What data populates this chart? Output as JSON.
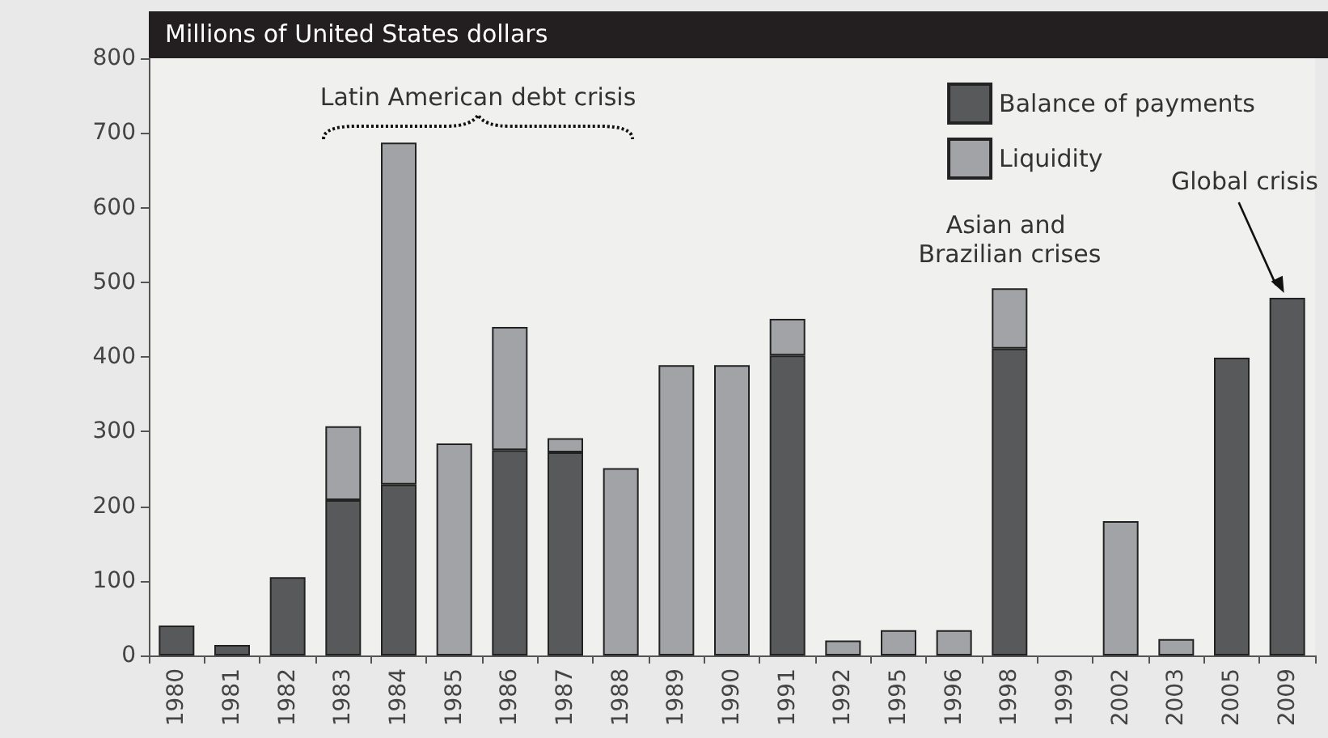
{
  "chart_data": {
    "type": "bar",
    "stacked": true,
    "ylabel": "Millions of United States dollars",
    "categories": [
      "1980",
      "1981",
      "1982",
      "1983",
      "1984",
      "1985",
      "1986",
      "1987",
      "1988",
      "1989",
      "1990",
      "1991",
      "1992",
      "1995",
      "1996",
      "1998",
      "1999",
      "2002",
      "2003",
      "2005",
      "2009"
    ],
    "series": [
      {
        "name": "Balance of payments",
        "color": "#58595b",
        "values": [
          40,
          14,
          105,
          208,
          229,
          null,
          275,
          272,
          null,
          null,
          null,
          402,
          null,
          null,
          null,
          411,
          null,
          null,
          null,
          399,
          479
        ]
      },
      {
        "name": "Liquidity",
        "color": "#a2a3a6",
        "values": [
          null,
          null,
          null,
          99,
          458,
          284,
          165,
          19,
          251,
          389,
          389,
          49,
          20,
          34,
          34,
          81,
          null,
          180,
          22,
          null,
          null
        ]
      }
    ],
    "ylim": [
      0,
      800
    ],
    "yticks": [
      0,
      100,
      200,
      300,
      400,
      500,
      600,
      700,
      800
    ],
    "grid": false,
    "legend": "top right",
    "annotations": [
      "Latin American debt crisis",
      {
        "text": "Asian and Brazilian crises",
        "x": "1998",
        "y": 492
      },
      "Global crisis"
    ]
  }
}
